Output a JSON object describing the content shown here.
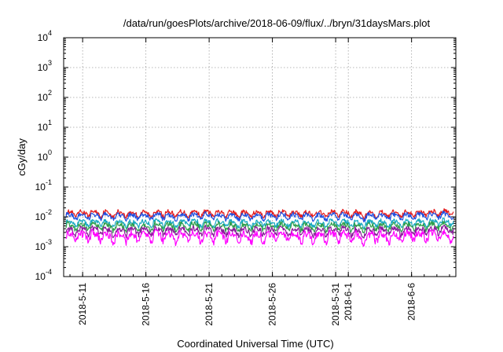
{
  "chart_data": {
    "type": "line",
    "title": "/data/run/goesPlots/archive/2018-06-09/flux/../bryn/31daysMars.plot",
    "xlabel": "Coordinated Universal Time (UTC)",
    "ylabel": "cGy/day",
    "yscale": "log",
    "ylim": [
      0.0001,
      10000
    ],
    "y_ticks": [
      {
        "base": "10",
        "exp": "-4",
        "value": 0.0001
      },
      {
        "base": "10",
        "exp": "-3",
        "value": 0.001
      },
      {
        "base": "10",
        "exp": "-2",
        "value": 0.01
      },
      {
        "base": "10",
        "exp": "-1",
        "value": 0.1
      },
      {
        "base": "10",
        "exp": "0",
        "value": 1
      },
      {
        "base": "10",
        "exp": "1",
        "value": 10
      },
      {
        "base": "10",
        "exp": "2",
        "value": 100
      },
      {
        "base": "10",
        "exp": "3",
        "value": 1000
      },
      {
        "base": "10",
        "exp": "4",
        "value": 10000
      }
    ],
    "xlim": [
      "2018-05-09T12:00",
      "2018-06-09T12:00"
    ],
    "x_ticks": [
      "2018-5-11",
      "2018-5-16",
      "2018-5-21",
      "2018-5-26",
      "2018-5-31",
      "2018-6-1",
      "2018-6-6"
    ],
    "x_tick_dates": [
      "2018-05-11",
      "2018-05-16",
      "2018-05-21",
      "2018-05-26",
      "2018-05-31",
      "2018-06-01",
      "2018-06-06"
    ],
    "grid": true,
    "series": [
      {
        "color": "#e41a1c",
        "level": 0.013,
        "amplitude": 0.16
      },
      {
        "color": "#1f4fe0",
        "level": 0.0105,
        "amplitude": 0.16
      },
      {
        "color": "#16a8c0",
        "level": 0.0062,
        "amplitude": 0.17
      },
      {
        "color": "#2e9e4a",
        "level": 0.0048,
        "amplitude": 0.18
      },
      {
        "color": "#8a1a9a",
        "level": 0.0034,
        "amplitude": 0.2
      },
      {
        "color": "#ff00ff",
        "level": 0.0022,
        "amplitude": 0.26
      }
    ]
  }
}
